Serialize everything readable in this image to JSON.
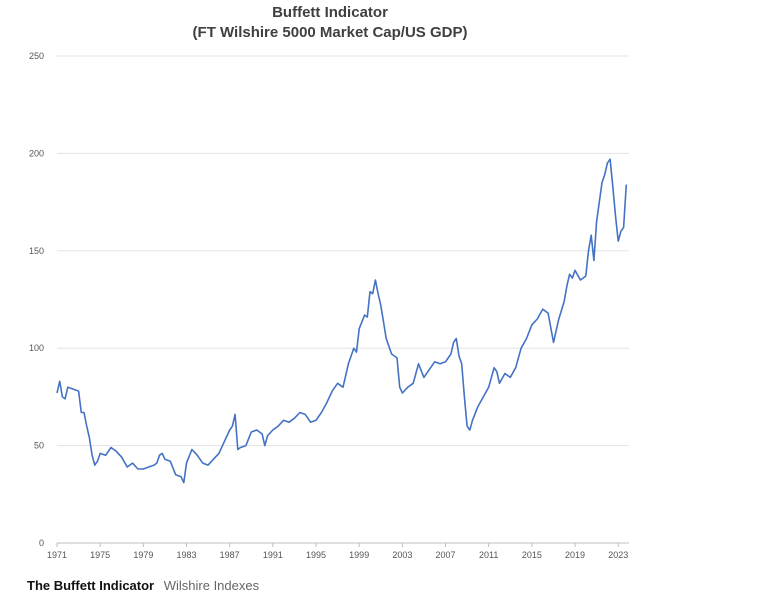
{
  "chart_data": {
    "type": "line",
    "title": "Buffett Indicator",
    "subtitle": "(FT Wilshire 5000 Market Cap/US GDP)",
    "xlabel": "",
    "ylabel": "",
    "xlim": [
      1971,
      2024
    ],
    "ylim": [
      0,
      250
    ],
    "y_ticks": [
      0,
      50,
      100,
      150,
      200,
      250
    ],
    "x_ticks": [
      "1971",
      "1975",
      "1979",
      "1983",
      "1987",
      "1991",
      "1995",
      "1999",
      "2003",
      "2007",
      "2011",
      "2015",
      "2019",
      "2023"
    ],
    "grid": "horizontal",
    "series": [
      {
        "color": "#4472C4",
        "x": [
          1971.0,
          1971.25,
          1971.5,
          1971.75,
          1972.0,
          1972.5,
          1973.0,
          1973.25,
          1973.5,
          1973.75,
          1974.0,
          1974.25,
          1974.5,
          1974.75,
          1975.0,
          1975.5,
          1976.0,
          1976.5,
          1977.0,
          1977.5,
          1978.0,
          1978.5,
          1979.0,
          1979.5,
          1980.0,
          1980.25,
          1980.5,
          1980.75,
          1981.0,
          1981.5,
          1982.0,
          1982.5,
          1982.75,
          1983.0,
          1983.5,
          1984.0,
          1984.5,
          1985.0,
          1985.5,
          1986.0,
          1986.5,
          1987.0,
          1987.25,
          1987.5,
          1987.75,
          1988.0,
          1988.5,
          1989.0,
          1989.5,
          1990.0,
          1990.25,
          1990.5,
          1991.0,
          1991.5,
          1992.0,
          1992.5,
          1993.0,
          1993.5,
          1994.0,
          1994.5,
          1995.0,
          1995.5,
          1996.0,
          1996.5,
          1997.0,
          1997.5,
          1998.0,
          1998.5,
          1998.75,
          1999.0,
          1999.5,
          1999.75,
          2000.0,
          2000.25,
          2000.5,
          2000.75,
          2001.0,
          2001.5,
          2002.0,
          2002.5,
          2002.75,
          2003.0,
          2003.5,
          2004.0,
          2004.5,
          2005.0,
          2005.5,
          2006.0,
          2006.5,
          2007.0,
          2007.5,
          2007.75,
          2008.0,
          2008.25,
          2008.5,
          2008.75,
          2009.0,
          2009.25,
          2009.5,
          2010.0,
          2010.5,
          2011.0,
          2011.5,
          2011.75,
          2012.0,
          2012.5,
          2013.0,
          2013.5,
          2014.0,
          2014.5,
          2015.0,
          2015.5,
          2016.0,
          2016.5,
          2017.0,
          2017.5,
          2018.0,
          2018.25,
          2018.5,
          2018.75,
          2019.0,
          2019.5,
          2020.0,
          2020.25,
          2020.5,
          2020.75,
          2021.0,
          2021.25,
          2021.5,
          2021.75,
          2022.0,
          2022.25,
          2022.5,
          2022.75,
          2023.0,
          2023.25,
          2023.5,
          2023.75
        ],
        "values": [
          77,
          83,
          75,
          74,
          80,
          79,
          78,
          67,
          67,
          60,
          54,
          45,
          40,
          42,
          46,
          45,
          49,
          47,
          44,
          39,
          41,
          38,
          38,
          39,
          40,
          41,
          45,
          46,
          43,
          42,
          35,
          34,
          31,
          41,
          48,
          45,
          41,
          40,
          43,
          46,
          52,
          58,
          60,
          66,
          48,
          49,
          50,
          57,
          58,
          56,
          50,
          55,
          58,
          60,
          63,
          62,
          64,
          67,
          66,
          62,
          63,
          67,
          72,
          78,
          82,
          80,
          92,
          100,
          98,
          110,
          117,
          116,
          129,
          128,
          135,
          128,
          122,
          105,
          97,
          95,
          80,
          77,
          80,
          82,
          92,
          85,
          89,
          93,
          92,
          93,
          97,
          103,
          105,
          96,
          92,
          75,
          60,
          58,
          63,
          70,
          75,
          80,
          90,
          88,
          82,
          87,
          85,
          90,
          100,
          105,
          112,
          115,
          120,
          118,
          103,
          115,
          124,
          132,
          138,
          136,
          140,
          135,
          137,
          150,
          158,
          145,
          165,
          175,
          185,
          189,
          195,
          197,
          183,
          168,
          155,
          160,
          162,
          184
        ]
      }
    ]
  },
  "footer": {
    "title": "The Buffett Indicator",
    "source": "Wilshire Indexes"
  }
}
